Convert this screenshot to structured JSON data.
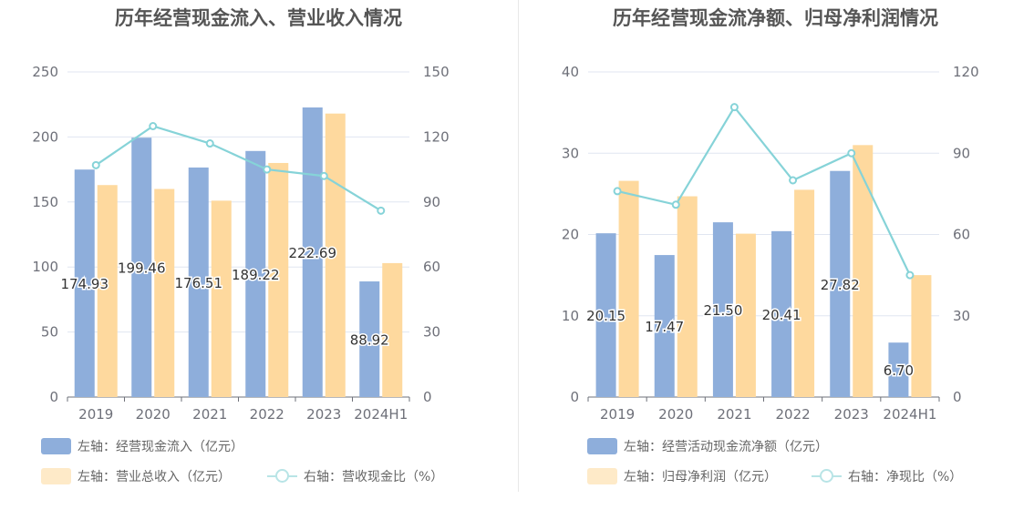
{
  "chart_data": [
    {
      "type": "bar",
      "title": "历年经营现金流入、营业收入情况",
      "categories": [
        "2019",
        "2020",
        "2021",
        "2022",
        "2023",
        "2024H1"
      ],
      "y_left": {
        "min": 0,
        "max": 250,
        "ticks": [
          "0",
          "50",
          "100",
          "150",
          "200",
          "250"
        ]
      },
      "y_right": {
        "min": 0,
        "max": 150,
        "ticks": [
          "0",
          "30",
          "60",
          "90",
          "120",
          "150"
        ]
      },
      "grid": true,
      "series": [
        {
          "name": "左轴：经营现金流入（亿元）",
          "kind": "bar",
          "axis": "left",
          "color": "#8eaedb",
          "values": [
            174.93,
            199.46,
            176.51,
            189.22,
            222.69,
            88.92
          ],
          "labels": [
            "174.93",
            "199.46",
            "176.51",
            "189.22",
            "222.69",
            "88.92"
          ]
        },
        {
          "name": "左轴：营业总收入（亿元）",
          "kind": "bar",
          "axis": "left",
          "color": "#fed99e",
          "values": [
            163,
            160,
            151,
            180,
            218,
            103
          ]
        },
        {
          "name": "右轴：营收现金比（%）",
          "kind": "line",
          "axis": "right",
          "color": "#86d3d8",
          "values": [
            107,
            125,
            117,
            105,
            102,
            86
          ]
        }
      ],
      "legend_position": "bottom-left"
    },
    {
      "type": "bar",
      "title": "历年经营现金流净额、归母净利润情况",
      "categories": [
        "2019",
        "2020",
        "2021",
        "2022",
        "2023",
        "2024H1"
      ],
      "y_left": {
        "min": 0,
        "max": 40,
        "ticks": [
          "0",
          "10",
          "20",
          "30",
          "40"
        ]
      },
      "y_right": {
        "min": 0,
        "max": 120,
        "ticks": [
          "0",
          "30",
          "60",
          "90",
          "120"
        ]
      },
      "grid": true,
      "series": [
        {
          "name": "左轴：经营活动现金流净额（亿元）",
          "kind": "bar",
          "axis": "left",
          "color": "#8eaedb",
          "values": [
            20.15,
            17.47,
            21.5,
            20.41,
            27.82,
            6.7
          ],
          "labels": [
            "20.15",
            "17.47",
            "21.50",
            "20.41",
            "27.82",
            "6.70"
          ]
        },
        {
          "name": "左轴：归母净利润（亿元）",
          "kind": "bar",
          "axis": "left",
          "color": "#fed99e",
          "values": [
            26.6,
            24.7,
            20.1,
            25.5,
            31.0,
            15.0
          ]
        },
        {
          "name": "右轴：净现比（%）",
          "kind": "line",
          "axis": "right",
          "color": "#86d3d8",
          "values": [
            76,
            71,
            107,
            80,
            90,
            45
          ]
        }
      ],
      "legend_position": "bottom-left"
    }
  ]
}
